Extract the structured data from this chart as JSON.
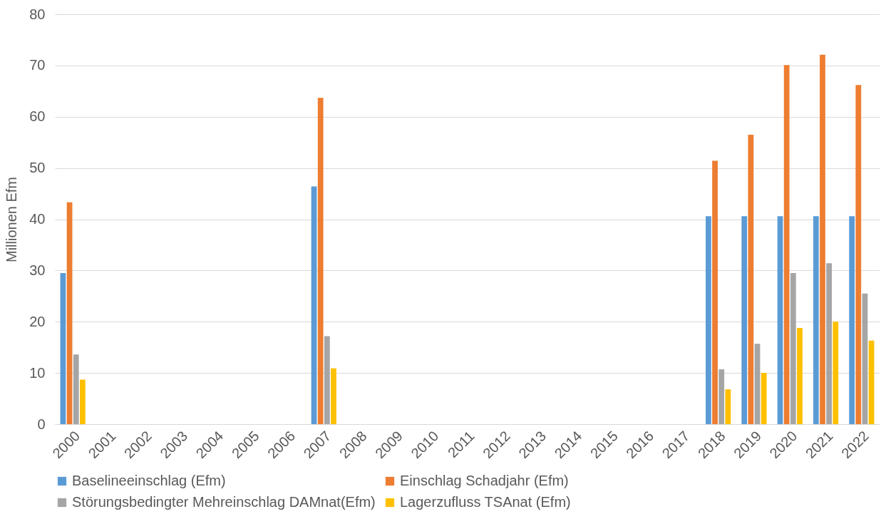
{
  "chart_data": {
    "type": "bar",
    "ylabel": "Millionen Efm",
    "categories": [
      "2000",
      "2001",
      "2002",
      "2003",
      "2004",
      "2005",
      "2006",
      "2007",
      "2008",
      "2009",
      "2010",
      "2011",
      "2012",
      "2013",
      "2014",
      "2015",
      "2016",
      "2017",
      "2018",
      "2019",
      "2020",
      "2021",
      "2022"
    ],
    "series": [
      {
        "name": "Baselineeinschlag (Efm)",
        "color": "#5b9bd5",
        "values": [
          29.5,
          null,
          null,
          null,
          null,
          null,
          null,
          46.4,
          null,
          null,
          null,
          null,
          null,
          null,
          null,
          null,
          null,
          null,
          40.6,
          40.6,
          40.6,
          40.6,
          40.6
        ]
      },
      {
        "name": "Einschlag Schadjahr (Efm)",
        "color": "#ed7d31",
        "values": [
          43.3,
          null,
          null,
          null,
          null,
          null,
          null,
          63.7,
          null,
          null,
          null,
          null,
          null,
          null,
          null,
          null,
          null,
          null,
          51.4,
          56.5,
          70.1,
          72.1,
          66.2
        ]
      },
      {
        "name": "Störungsbedingter Mehreinschlag DAMnat(Efm)",
        "color": "#a5a5a5",
        "values": [
          13.6,
          null,
          null,
          null,
          null,
          null,
          null,
          17.2,
          null,
          null,
          null,
          null,
          null,
          null,
          null,
          null,
          null,
          null,
          10.7,
          15.7,
          29.5,
          31.4,
          25.5
        ]
      },
      {
        "name": "Lagerzufluss TSAnat (Efm)",
        "color": "#ffc000",
        "values": [
          8.7,
          null,
          null,
          null,
          null,
          null,
          null,
          10.9,
          null,
          null,
          null,
          null,
          null,
          null,
          null,
          null,
          null,
          null,
          6.8,
          10.0,
          18.8,
          20.0,
          16.3
        ]
      }
    ],
    "ylim": [
      0,
      80
    ],
    "yticks": [
      0,
      10,
      20,
      30,
      40,
      50,
      60,
      70,
      80
    ],
    "grid": "y",
    "legend": "bottom"
  }
}
